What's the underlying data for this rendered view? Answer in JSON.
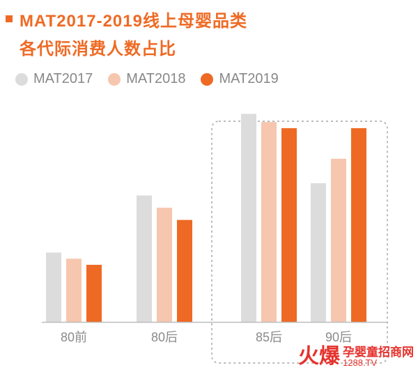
{
  "title": {
    "line1": "MAT2017-2019线上母婴品类",
    "line2": "各代际消费人数占比"
  },
  "colors": {
    "accent": "#EE6A24",
    "series": [
      "#DCDCDC",
      "#F7C6AE",
      "#EE6A24"
    ],
    "axis": "#BBBBBB",
    "tick_text": "#8A8A8A",
    "highlight_box": "#BBBBBB"
  },
  "chart_data": {
    "type": "bar",
    "categories": [
      "80前",
      "80后",
      "85后",
      "90后"
    ],
    "series": [
      {
        "name": "MAT2017",
        "values": [
          17,
          31,
          51,
          34
        ]
      },
      {
        "name": "MAT2018",
        "values": [
          15.5,
          28,
          49,
          40
        ]
      },
      {
        "name": "MAT2019",
        "values": [
          14,
          25,
          47.5,
          47.5
        ]
      }
    ],
    "ylim": [
      0,
      55
    ],
    "grid": false,
    "legend_position": "top-left",
    "highlight_category": "85后",
    "xlabel": "",
    "ylabel": ""
  },
  "watermark": {
    "logo_mark": "火爆",
    "logo_text": "孕婴童招商网",
    "logo_url": "1288.TV"
  }
}
